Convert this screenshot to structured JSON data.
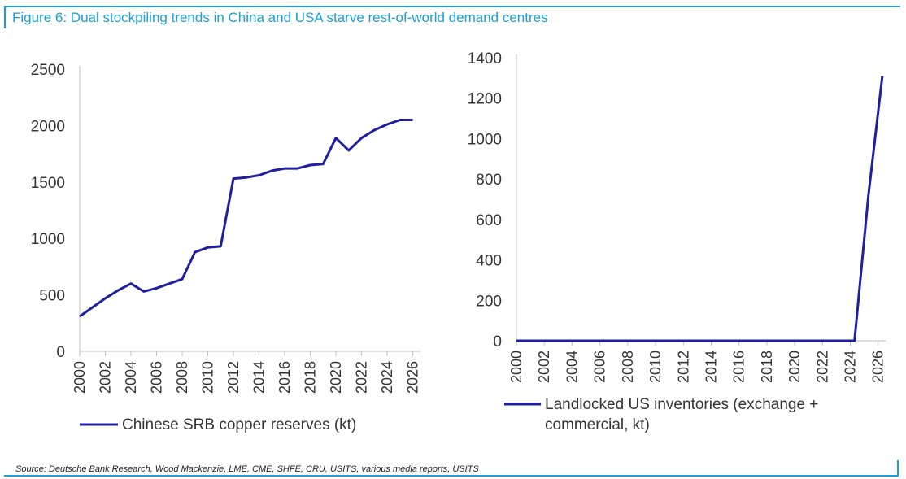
{
  "title": "Figure 6: Dual stockpiling trends in China and USA starve rest-of-world demand centres",
  "source": "Source: Deutsche Bank Research, Wood Mackenzie, LME, CME, SHFE, CRU, USITS, various media reports, USITS",
  "colors": {
    "accent": "#1aa0d8",
    "series": "#1f1fa0"
  },
  "chart_data": [
    {
      "type": "line",
      "title": "",
      "xlabel": "",
      "ylabel": "",
      "ylim": [
        0,
        2500
      ],
      "yticks": [
        0,
        500,
        1000,
        1500,
        2000,
        2500
      ],
      "xticks": [
        "2000",
        "2002",
        "2004",
        "2006",
        "2008",
        "2010",
        "2012",
        "2014",
        "2016",
        "2018",
        "2020",
        "2022",
        "2024",
        "2026"
      ],
      "grid": false,
      "legend_position": "bottom-left",
      "series": [
        {
          "name": "Chinese SRB copper reserves (kt)",
          "x": [
            2000,
            2001,
            2002,
            2003,
            2004,
            2005,
            2006,
            2007,
            2008,
            2009,
            2010,
            2011,
            2012,
            2013,
            2014,
            2015,
            2016,
            2017,
            2018,
            2019,
            2020,
            2021,
            2022,
            2023,
            2024,
            2025,
            2026
          ],
          "y": [
            310,
            390,
            470,
            540,
            600,
            530,
            560,
            600,
            640,
            880,
            920,
            930,
            1530,
            1540,
            1560,
            1600,
            1620,
            1620,
            1650,
            1660,
            1890,
            1780,
            1890,
            1960,
            2010,
            2050,
            2050
          ]
        }
      ]
    },
    {
      "type": "line",
      "title": "",
      "xlabel": "",
      "ylabel": "",
      "ylim": [
        0,
        1400
      ],
      "yticks": [
        0,
        200,
        400,
        600,
        800,
        1000,
        1200,
        1400
      ],
      "xticks": [
        "2000",
        "2002",
        "2004",
        "2006",
        "2008",
        "2010",
        "2012",
        "2014",
        "2016",
        "2018",
        "2020",
        "2022",
        "2024",
        "2026"
      ],
      "grid": false,
      "legend_position": "bottom-left",
      "series": [
        {
          "name": "Landlocked US inventories (exchange + commercial, kt)",
          "legend_lines": [
            "Landlocked US inventories (exchange +",
            "commercial, kt)"
          ],
          "x": [
            2000,
            2024.3,
            2025.3,
            2026.3
          ],
          "y": [
            0,
            0,
            720,
            1310
          ]
        }
      ]
    }
  ]
}
